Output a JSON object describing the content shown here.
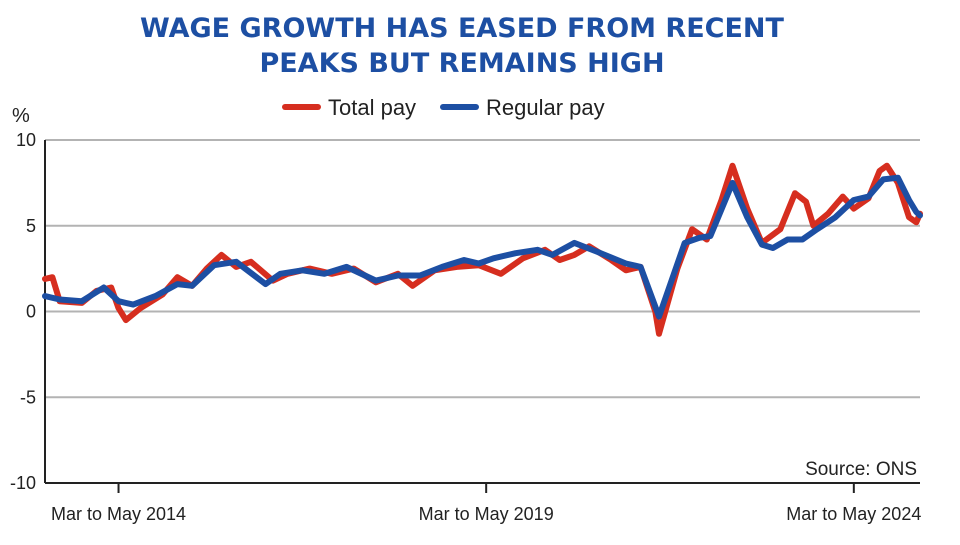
{
  "chart_data": {
    "type": "line",
    "title_lines": [
      "WAGE GROWTH HAS EASED FROM RECENT",
      "PEAKS BUT REMAINS HIGH"
    ],
    "unit": "%",
    "source": "Source: ONS",
    "ylim": [
      -10,
      10
    ],
    "yticks": [
      10,
      5,
      0,
      -5,
      -10
    ],
    "ytick_labels": [
      "10",
      "5",
      "0",
      "-5",
      "-10"
    ],
    "x_start_year": 2013,
    "x_end_year": 2024.9,
    "xticks": [
      {
        "x": 2014,
        "label": "Mar to May 2014"
      },
      {
        "x": 2019,
        "label": "Mar to May 2019"
      },
      {
        "x": 2024,
        "label": "Mar to May 2024"
      }
    ],
    "grid": true,
    "legend_position": "top-center",
    "series": [
      {
        "name": "Total pay",
        "color": "#d62e1f",
        "points": [
          [
            2013.0,
            1.9
          ],
          [
            2013.1,
            2.0
          ],
          [
            2013.2,
            0.6
          ],
          [
            2013.5,
            0.5
          ],
          [
            2013.7,
            1.2
          ],
          [
            2013.9,
            1.4
          ],
          [
            2014.0,
            0.2
          ],
          [
            2014.1,
            -0.5
          ],
          [
            2014.3,
            0.2
          ],
          [
            2014.6,
            1.0
          ],
          [
            2014.8,
            2.0
          ],
          [
            2015.0,
            1.5
          ],
          [
            2015.2,
            2.5
          ],
          [
            2015.4,
            3.3
          ],
          [
            2015.6,
            2.6
          ],
          [
            2015.8,
            2.9
          ],
          [
            2016.1,
            1.8
          ],
          [
            2016.3,
            2.2
          ],
          [
            2016.6,
            2.5
          ],
          [
            2016.9,
            2.2
          ],
          [
            2017.2,
            2.5
          ],
          [
            2017.5,
            1.7
          ],
          [
            2017.8,
            2.2
          ],
          [
            2018.0,
            1.5
          ],
          [
            2018.3,
            2.4
          ],
          [
            2018.6,
            2.6
          ],
          [
            2018.9,
            2.7
          ],
          [
            2019.2,
            2.2
          ],
          [
            2019.5,
            3.1
          ],
          [
            2019.8,
            3.6
          ],
          [
            2020.0,
            3.0
          ],
          [
            2020.2,
            3.3
          ],
          [
            2020.4,
            3.8
          ],
          [
            2020.7,
            3.0
          ],
          [
            2020.9,
            2.4
          ],
          [
            2021.1,
            2.6
          ],
          [
            2021.3,
            0.0
          ],
          [
            2021.35,
            -1.3
          ],
          [
            2021.6,
            2.5
          ],
          [
            2021.8,
            4.8
          ],
          [
            2022.0,
            4.2
          ],
          [
            2022.2,
            6.5
          ],
          [
            2022.35,
            8.5
          ],
          [
            2022.55,
            6.0
          ],
          [
            2022.75,
            4.0
          ],
          [
            2023.0,
            4.8
          ],
          [
            2023.2,
            6.9
          ],
          [
            2023.35,
            6.4
          ],
          [
            2023.45,
            5.0
          ],
          [
            2023.65,
            5.7
          ],
          [
            2023.85,
            6.7
          ],
          [
            2024.0,
            6.0
          ],
          [
            2024.2,
            6.6
          ],
          [
            2024.35,
            8.2
          ],
          [
            2024.45,
            8.5
          ],
          [
            2024.6,
            7.5
          ],
          [
            2024.75,
            5.5
          ],
          [
            2024.85,
            5.2
          ],
          [
            2024.9,
            5.7
          ]
        ]
      },
      {
        "name": "Regular pay",
        "color": "#1d4fa3",
        "points": [
          [
            2013.0,
            0.9
          ],
          [
            2013.2,
            0.7
          ],
          [
            2013.5,
            0.6
          ],
          [
            2013.8,
            1.4
          ],
          [
            2014.0,
            0.6
          ],
          [
            2014.2,
            0.4
          ],
          [
            2014.5,
            0.9
          ],
          [
            2014.8,
            1.6
          ],
          [
            2015.0,
            1.5
          ],
          [
            2015.3,
            2.7
          ],
          [
            2015.6,
            2.9
          ],
          [
            2016.0,
            1.6
          ],
          [
            2016.2,
            2.2
          ],
          [
            2016.5,
            2.4
          ],
          [
            2016.8,
            2.2
          ],
          [
            2017.1,
            2.6
          ],
          [
            2017.5,
            1.8
          ],
          [
            2017.8,
            2.1
          ],
          [
            2018.1,
            2.1
          ],
          [
            2018.4,
            2.6
          ],
          [
            2018.7,
            3.0
          ],
          [
            2018.9,
            2.8
          ],
          [
            2019.1,
            3.1
          ],
          [
            2019.4,
            3.4
          ],
          [
            2019.7,
            3.6
          ],
          [
            2019.9,
            3.3
          ],
          [
            2020.2,
            4.0
          ],
          [
            2020.5,
            3.5
          ],
          [
            2020.9,
            2.8
          ],
          [
            2021.1,
            2.6
          ],
          [
            2021.35,
            -0.3
          ],
          [
            2021.7,
            4.0
          ],
          [
            2021.9,
            4.3
          ],
          [
            2022.05,
            4.4
          ],
          [
            2022.35,
            7.5
          ],
          [
            2022.55,
            5.5
          ],
          [
            2022.75,
            3.9
          ],
          [
            2022.9,
            3.7
          ],
          [
            2023.1,
            4.2
          ],
          [
            2023.3,
            4.2
          ],
          [
            2023.5,
            4.8
          ],
          [
            2023.75,
            5.5
          ],
          [
            2024.0,
            6.5
          ],
          [
            2024.2,
            6.7
          ],
          [
            2024.4,
            7.7
          ],
          [
            2024.6,
            7.8
          ],
          [
            2024.75,
            6.5
          ],
          [
            2024.85,
            5.8
          ],
          [
            2024.9,
            5.6
          ]
        ]
      }
    ]
  }
}
